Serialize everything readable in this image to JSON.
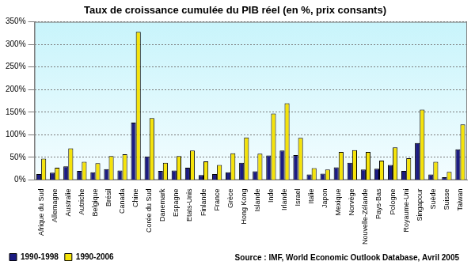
{
  "chart_data": {
    "type": "bar",
    "title": "Taux de croissance cumulée du PIB réel (en %, prix consants)",
    "annotation": "Source : IMF, World Economic Outlook Database, Avril 2005",
    "categories": [
      "Afrique du Sud",
      "Allemagne",
      "Australie",
      "Autriche",
      "Belgique",
      "Brésil",
      "Canada",
      "Chine",
      "Corée du Sud",
      "Danemark",
      "Espagne",
      "Etats-Unis",
      "Finlande",
      "France",
      "Grèce",
      "Hong Kong",
      "Islande",
      "Inde",
      "Irlande",
      "Israel",
      "Italie",
      "Japon",
      "Mexique",
      "Norvège",
      "Nouvelle-Zélande",
      "Pays-Bas",
      "Pologne",
      "Royaume-Uni",
      "Singapour",
      "Suède",
      "Suisse",
      "Taiwan"
    ],
    "series": [
      {
        "name": "1990-1998",
        "color": "#1c1c82",
        "values": [
          13,
          16,
          30,
          20,
          17,
          24,
          21,
          127,
          52,
          20,
          21,
          27,
          11,
          13,
          17,
          38,
          19,
          54,
          65,
          55,
          12,
          14,
          28,
          38,
          23,
          25,
          33,
          20,
          82,
          12,
          6,
          68
        ]
      },
      {
        "name": "1990-2006",
        "color": "#f5e30a",
        "values": [
          47,
          27,
          70,
          40,
          37,
          53,
          57,
          328,
          137,
          38,
          53,
          65,
          41,
          33,
          59,
          94,
          58,
          147,
          170,
          93,
          26,
          23,
          62,
          66,
          62,
          43,
          72,
          48,
          156,
          40,
          18,
          123
        ]
      }
    ],
    "ylim": [
      0,
      350
    ],
    "yticks": [
      {
        "value": 0,
        "label": "0%"
      },
      {
        "value": 50,
        "label": "50%"
      },
      {
        "value": 100,
        "label": "100%"
      },
      {
        "value": 150,
        "label": "150%"
      },
      {
        "value": 200,
        "label": "200%"
      },
      {
        "value": 250,
        "label": "250%"
      },
      {
        "value": 300,
        "label": "300%"
      },
      {
        "value": 350,
        "label": "350%"
      }
    ],
    "grid": true,
    "legend": "bottom"
  }
}
